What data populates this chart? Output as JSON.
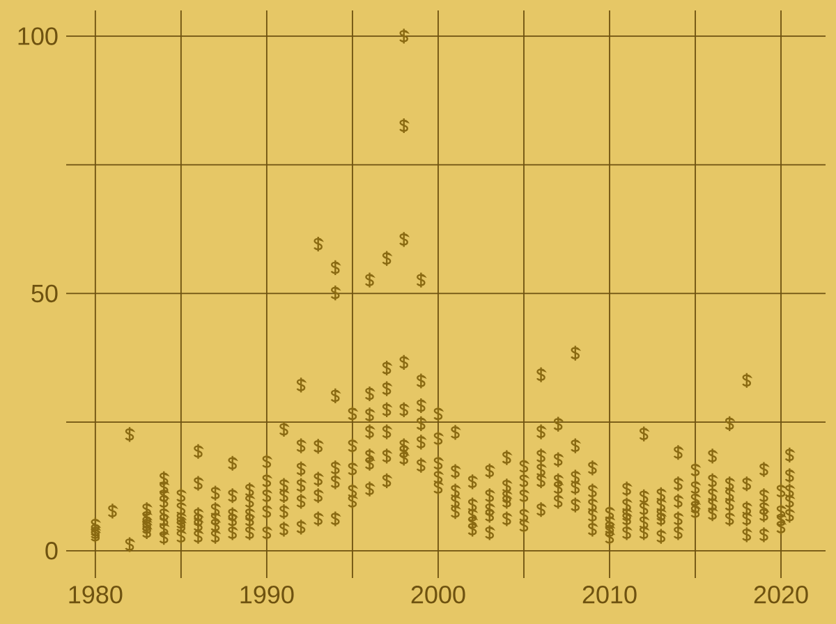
{
  "chart_data": {
    "type": "scatter",
    "x": [
      1980,
      1980,
      1980,
      1980,
      1981,
      1982,
      1982,
      1983,
      1983,
      1983,
      1983,
      1983,
      1983,
      1984,
      1984,
      1984,
      1984,
      1984,
      1984,
      1984,
      1984,
      1985,
      1985,
      1985,
      1985,
      1985,
      1985,
      1986,
      1986,
      1986,
      1986,
      1986,
      1986,
      1987,
      1987,
      1987,
      1987,
      1987,
      1988,
      1988,
      1988,
      1988,
      1988,
      1989,
      1989,
      1989,
      1989,
      1989,
      1990,
      1990,
      1990,
      1990,
      1990,
      1991,
      1991,
      1991,
      1991,
      1991,
      1992,
      1992,
      1992,
      1992,
      1992,
      1992,
      1993,
      1993,
      1993,
      1993,
      1993,
      1994,
      1994,
      1994,
      1994,
      1994,
      1994,
      1995,
      1995,
      1995,
      1995,
      1995,
      1996,
      1996,
      1996,
      1996,
      1996,
      1996,
      1996,
      1997,
      1997,
      1997,
      1997,
      1997,
      1997,
      1997,
      1998,
      1998,
      1998,
      1998,
      1998,
      1998,
      1998,
      1998,
      1999,
      1999,
      1999,
      1999,
      1999,
      1999,
      2000,
      2000,
      2000,
      2000,
      2000,
      2001,
      2001,
      2001,
      2001,
      2001,
      2002,
      2002,
      2002,
      2002,
      2002,
      2003,
      2003,
      2003,
      2003,
      2003,
      2004,
      2004,
      2004,
      2004,
      2004,
      2005,
      2005,
      2005,
      2005,
      2005,
      2006,
      2006,
      2006,
      2006,
      2006,
      2006,
      2007,
      2007,
      2007,
      2007,
      2007,
      2008,
      2008,
      2008,
      2008,
      2008,
      2009,
      2009,
      2009,
      2009,
      2009,
      2010,
      2010,
      2010,
      2010,
      2010,
      2011,
      2011,
      2011,
      2011,
      2011,
      2012,
      2012,
      2012,
      2012,
      2012,
      2013,
      2013,
      2013,
      2013,
      2013,
      2014,
      2014,
      2014,
      2014,
      2014,
      2015,
      2015,
      2015,
      2015,
      2015,
      2016,
      2016,
      2016,
      2016,
      2016,
      2017,
      2017,
      2017,
      2017,
      2017,
      2018,
      2018,
      2018,
      2018,
      2018,
      2019,
      2019,
      2019,
      2019,
      2019,
      2020,
      2020,
      2020,
      2020,
      2020.5,
      2020.5,
      2020.5,
      2020.5,
      2020.5
    ],
    "values": [
      3,
      3.5,
      4,
      5,
      7.7,
      22.6,
      1.2,
      8,
      6.5,
      5.5,
      5,
      4.5,
      3.7,
      14,
      12.3,
      10.7,
      9.6,
      7,
      6,
      4.2,
      2.6,
      10.7,
      8.2,
      6.2,
      5.5,
      4.9,
      2.8,
      19.3,
      13.1,
      7,
      6,
      5,
      2.8,
      11.2,
      8,
      6.2,
      5,
      2.8,
      17,
      10.7,
      7,
      6,
      3.5,
      11.8,
      9.6,
      7,
      6,
      3.5,
      17.3,
      13.6,
      10.7,
      7.6,
      3.5,
      23.6,
      12.7,
      10.7,
      7.6,
      4.2,
      32.2,
      20.4,
      15.9,
      12.7,
      9.6,
      4.6,
      59.6,
      20.3,
      13.9,
      10.7,
      6.2,
      55,
      50.1,
      30.1,
      16.1,
      13.4,
      6.2,
      26.6,
      20.4,
      15.9,
      11.6,
      9.6,
      52.6,
      30.5,
      26.4,
      23.1,
      18.4,
      17,
      12,
      56.8,
      35.5,
      31.5,
      27.4,
      23.1,
      18.4,
      13.6,
      100,
      82.6,
      60.5,
      36.6,
      27.4,
      20.4,
      19.3,
      18,
      52.6,
      33,
      28.2,
      24.7,
      21.1,
      16.6,
      26.6,
      21.8,
      17,
      14.3,
      12.3,
      23,
      15.4,
      11.6,
      9.6,
      7.6,
      13.4,
      8.9,
      6.9,
      5.5,
      4.2,
      15.5,
      10.7,
      8,
      6.9,
      3.5,
      18.1,
      12.6,
      10.5,
      9.6,
      6.2,
      16.4,
      13.6,
      10.7,
      6.9,
      4.9,
      34.2,
      23.1,
      18.4,
      15.7,
      13.6,
      8,
      24.6,
      17.7,
      13.6,
      12.3,
      9.6,
      38.4,
      20.4,
      14.3,
      12.3,
      8.9,
      16.1,
      11.6,
      8.9,
      6.9,
      4.2,
      7.3,
      5.5,
      4.5,
      3.9,
      2.6,
      12,
      8.9,
      7,
      6.2,
      3.5,
      22.7,
      10.5,
      8.2,
      5.5,
      3.5,
      10.9,
      8.9,
      7,
      6.2,
      2.8,
      19.1,
      13,
      9.6,
      6.2,
      3.5,
      15.7,
      12.3,
      9.9,
      8.5,
      7.6,
      18.4,
      13.6,
      10.9,
      9,
      7.2,
      24.7,
      13,
      10.9,
      9,
      6.2,
      33.1,
      13,
      8.2,
      6.2,
      3.1,
      15.8,
      10.7,
      8.2,
      7,
      3.1,
      11.6,
      7.6,
      6,
      4.6,
      18.6,
      14.6,
      11.6,
      9.6,
      6.9
    ],
    "color": "#8a6a12",
    "xlim": [
      1978.3,
      2022.6
    ],
    "ylim": [
      -5.3,
      105
    ],
    "xticks": [
      1980,
      {
        "value": 1985,
        "label": null
      },
      1990,
      {
        "value": 1995,
        "label": null
      },
      2000,
      {
        "value": 2005,
        "label": null
      },
      2010,
      {
        "value": 2015,
        "label": null
      },
      2020
    ],
    "yticks": [
      0,
      {
        "value": 25,
        "label": null
      },
      50,
      {
        "value": 75,
        "label": null
      },
      100
    ],
    "grid": true
  }
}
